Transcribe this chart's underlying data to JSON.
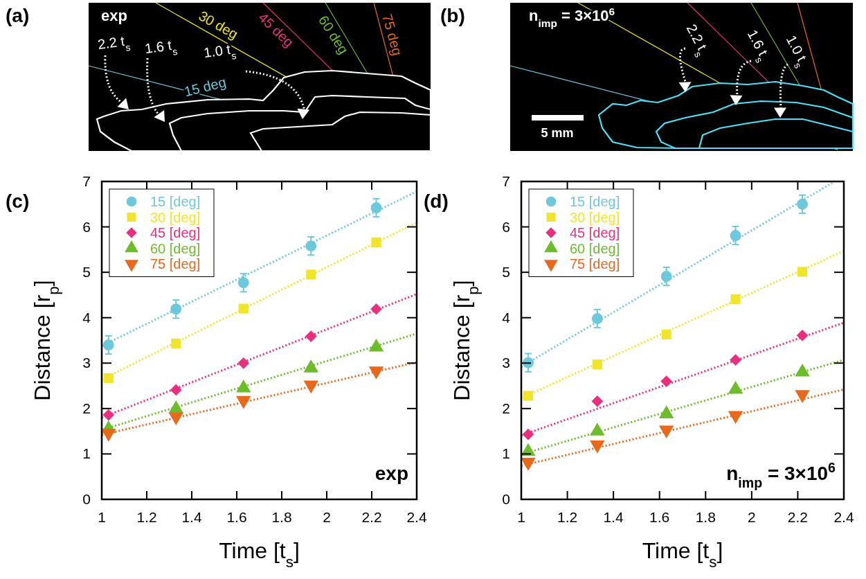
{
  "chart_data": [
    {
      "type": "other",
      "title": "(a)",
      "annotations": [
        "exp",
        "30 deg",
        "45 deg",
        "60 deg",
        "75 deg",
        "15 deg",
        "2.2 t$_{s}$",
        "1.6 t$_{s}$",
        "1.0 t$_{s}$"
      ]
    },
    {
      "type": "other",
      "title": "(b)",
      "annotations": [
        "n$_{imp}$ = 3×10$^{6}$",
        "2.2 t$_{s}$",
        "1.6 t$_{s}$",
        "1.0 t$_{s}$",
        "5 mm"
      ]
    },
    {
      "type": "scatter",
      "title": "(c)",
      "xlabel": "Time [t$_{s}$]",
      "ylabel": "Distance [r$_{p}$]",
      "xlim": [
        1,
        2.4
      ],
      "ylim": [
        0,
        7
      ],
      "xticks": [
        1,
        1.2,
        1.4,
        1.6,
        1.8,
        2,
        2.2,
        2.4
      ],
      "yticks": [
        0,
        1,
        2,
        3,
        4,
        5,
        6,
        7
      ],
      "legend": "top left",
      "annotations": [
        "exp"
      ],
      "x": [
        1.03,
        1.33,
        1.63,
        1.93,
        2.22
      ],
      "series": [
        {
          "name": "15 [deg]",
          "color": "#6ec8dc",
          "marker": "circle",
          "values": [
            3.4,
            4.19,
            4.77,
            5.58,
            6.42
          ],
          "errors": [
            0.2,
            0.2,
            0.2,
            0.2,
            0.2
          ]
        },
        {
          "name": "30 [deg]",
          "color": "#f0e52a",
          "marker": "square",
          "values": [
            2.67,
            3.43,
            4.2,
            4.95,
            5.66
          ]
        },
        {
          "name": "45 [deg]",
          "color": "#e8307f",
          "marker": "diamond",
          "values": [
            1.86,
            2.41,
            3.0,
            3.59,
            4.19
          ]
        },
        {
          "name": "60 [deg]",
          "color": "#6cbc2c",
          "marker": "triangle",
          "values": [
            1.55,
            1.99,
            2.45,
            2.89,
            3.35
          ]
        },
        {
          "name": "75 [deg]",
          "color": "#e8681c",
          "marker": "triangle-down",
          "values": [
            1.46,
            1.82,
            2.18,
            2.52,
            2.83
          ]
        },
        {
          "type": "line",
          "color": "#6ec8dc",
          "line_style": "dotted",
          "x": [
            1,
            2.4
          ],
          "values": [
            3.38,
            6.78
          ]
        },
        {
          "type": "line",
          "color": "#f0e52a",
          "line_style": "dotted",
          "x": [
            1,
            2.4
          ],
          "values": [
            2.64,
            6.1
          ]
        },
        {
          "type": "line",
          "color": "#e8307f",
          "line_style": "dotted",
          "x": [
            1,
            2.4
          ],
          "values": [
            1.8,
            4.52
          ]
        },
        {
          "type": "line",
          "color": "#6cbc2c",
          "line_style": "dotted",
          "x": [
            1,
            2.4
          ],
          "values": [
            1.53,
            3.65
          ]
        },
        {
          "type": "line",
          "color": "#e8681c",
          "line_style": "dotted",
          "x": [
            1,
            2.4
          ],
          "values": [
            1.42,
            3.02
          ]
        }
      ]
    },
    {
      "type": "scatter",
      "title": "(d)",
      "xlabel": "Time [t$_{s}$]",
      "ylabel": "Distance [r$_{p}$]",
      "xlim": [
        1,
        2.4
      ],
      "ylim": [
        0,
        7
      ],
      "xticks": [
        1,
        1.2,
        1.4,
        1.6,
        1.8,
        2,
        2.2,
        2.4
      ],
      "yticks": [
        0,
        1,
        2,
        3,
        4,
        5,
        6,
        7
      ],
      "legend": "top left",
      "annotations": [
        "n$_{imp}$ = 3×10$^{6}$"
      ],
      "x": [
        1.03,
        1.33,
        1.63,
        1.93,
        2.22
      ],
      "series": [
        {
          "name": "15 [deg]",
          "color": "#6ec8dc",
          "marker": "circle",
          "values": [
            3.01,
            3.98,
            4.91,
            5.81,
            6.5
          ],
          "errors": [
            0.2,
            0.2,
            0.2,
            0.2,
            0.2
          ]
        },
        {
          "name": "30 [deg]",
          "color": "#f0e52a",
          "marker": "square",
          "values": [
            2.28,
            2.97,
            3.63,
            4.41,
            5.01
          ]
        },
        {
          "name": "45 [deg]",
          "color": "#e8307f",
          "marker": "diamond",
          "values": [
            1.43,
            2.16,
            2.6,
            3.07,
            3.61
          ]
        },
        {
          "name": "60 [deg]",
          "color": "#6cbc2c",
          "marker": "triangle",
          "values": [
            1.05,
            1.5,
            1.88,
            2.42,
            2.8
          ]
        },
        {
          "name": "75 [deg]",
          "color": "#e8681c",
          "marker": "triangle-down",
          "values": [
            0.82,
            1.2,
            1.53,
            1.85,
            2.31
          ]
        },
        {
          "type": "line",
          "color": "#6ec8dc",
          "line_style": "dotted",
          "x": [
            1,
            2.35
          ],
          "values": [
            2.92,
            6.97
          ]
        },
        {
          "type": "line",
          "color": "#f0e52a",
          "line_style": "dotted",
          "x": [
            1,
            2.4
          ],
          "values": [
            2.23,
            5.47
          ]
        },
        {
          "type": "line",
          "color": "#e8307f",
          "line_style": "dotted",
          "x": [
            1,
            2.4
          ],
          "values": [
            1.41,
            3.89
          ]
        },
        {
          "type": "line",
          "color": "#6cbc2c",
          "line_style": "dotted",
          "x": [
            1,
            2.4
          ],
          "values": [
            0.99,
            3.07
          ]
        },
        {
          "type": "line",
          "color": "#e8681c",
          "line_style": "dotted",
          "x": [
            1,
            2.4
          ],
          "values": [
            0.74,
            2.42
          ]
        }
      ]
    }
  ]
}
